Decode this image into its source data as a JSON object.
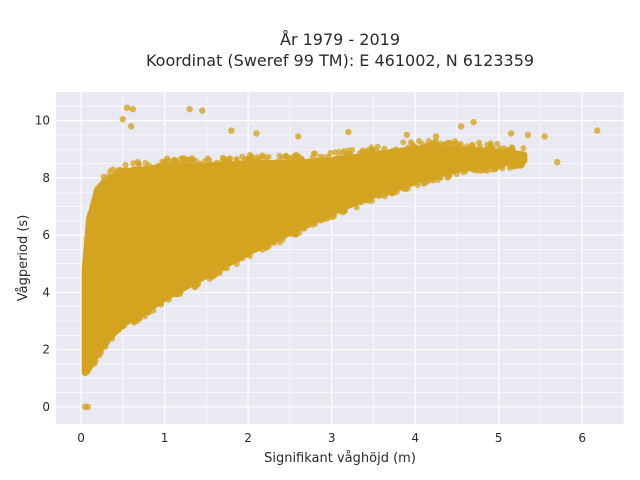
{
  "chart_data": {
    "type": "scatter",
    "title_line1": "År 1979 - 2019",
    "title_line2": "Koordinat (Sweref 99 TM): E 461002, N 6123359",
    "xlabel": "Signifikant våghöjd (m)",
    "ylabel": "Vågperiod (s)",
    "xlim": [
      -0.3,
      6.5
    ],
    "ylim": [
      -0.6,
      11.0
    ],
    "xticks": [
      "0",
      "1",
      "2",
      "3",
      "4",
      "5",
      "6"
    ],
    "yticks": [
      "0",
      "2",
      "4",
      "6",
      "8",
      "10"
    ],
    "grid": true,
    "legend": "none",
    "colors": {
      "marker": "#d4a421",
      "plot_bg": "#e9e9f1",
      "grid": "#ffffff"
    },
    "notable_points": {
      "x": [
        0.05,
        0.08,
        0.55,
        0.62,
        0.6,
        0.5,
        1.3,
        1.45,
        1.8,
        2.1,
        2.6,
        3.2,
        3.9,
        4.25,
        4.55,
        4.7,
        5.15,
        5.35,
        5.55,
        5.7,
        6.18
      ],
      "y": [
        0.0,
        0.0,
        10.45,
        10.4,
        9.8,
        10.05,
        10.4,
        10.35,
        9.65,
        9.55,
        9.45,
        9.6,
        9.5,
        9.45,
        9.8,
        9.95,
        9.55,
        9.5,
        9.45,
        8.55,
        9.65
      ]
    },
    "cloud_envelope": {
      "x": [
        0.05,
        0.1,
        0.2,
        0.3,
        0.5,
        0.8,
        1.0,
        1.5,
        2.0,
        2.5,
        3.0,
        3.5,
        4.0,
        4.5,
        5.0,
        5.3
      ],
      "y_lower": [
        1.2,
        1.4,
        1.9,
        2.3,
        2.9,
        3.4,
        3.8,
        4.6,
        5.4,
        6.1,
        6.8,
        7.4,
        7.9,
        8.3,
        8.5,
        8.6
      ],
      "y_upper": [
        4.8,
        6.5,
        7.6,
        7.9,
        8.2,
        8.3,
        8.4,
        8.4,
        8.5,
        8.5,
        8.6,
        8.8,
        9.0,
        9.0,
        8.9,
        8.8
      ]
    }
  }
}
